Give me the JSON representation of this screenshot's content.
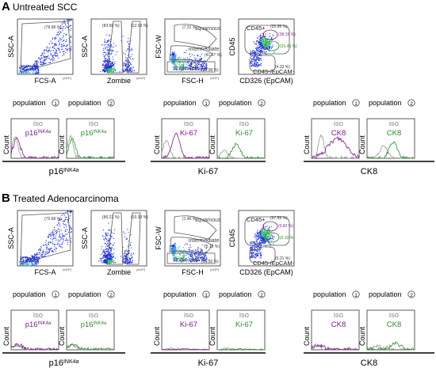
{
  "panels": [
    {
      "letter": "A",
      "title": "Untreated SCC",
      "scatter": [
        {
          "x_label": "FCS-A",
          "y_label": "SSC-A",
          "gate_pct": "(78.98 %)",
          "unit": "(x10⁴)",
          "variant": 1,
          "seed": 11
        },
        {
          "x_label": "Zombie",
          "y_label": "SSC-A",
          "gate_pct": "(83.56 %)",
          "gate_pct2": "(12.09 %)",
          "unit": "(x10⁴)",
          "variant": 2,
          "seed": 21
        },
        {
          "x_label": "FSC-H",
          "y_label": "FSC-W",
          "gate_pct": "(7.31 %)",
          "gate_pct2": "(41.57 %)",
          "gate_pct3": "(33.08 %)",
          "unit": "(x10⁴)",
          "variant": 3,
          "seed": 31,
          "lab1": "squamous",
          "lab2": "intermediate",
          "lab3": "single cells"
        },
        {
          "x_label": "CD326 (EpCAM)",
          "y_label": "CD45",
          "gate_pct": "(20.95 %)",
          "gate_pct2": "(38.15 %)",
          "gate_pct3": "(20.43 %)",
          "gate_pct4": "(4.33 %)",
          "variant": 4,
          "seed": 41,
          "lab1": "CD45+",
          "lab2": "CD45-/EpCAM-"
        }
      ],
      "hist": [
        {
          "population": "population",
          "num": "1",
          "iso": "iso",
          "marker": "p16",
          "sup": "INK4a",
          "color": "#7b1a88",
          "y_label": "Count",
          "shape": "left",
          "seed": 51
        },
        {
          "population": "population",
          "num": "2",
          "iso": "iso",
          "marker": "p16",
          "sup": "INK4a",
          "color": "#2e8b2e",
          "y_label": "Count",
          "shape": "left",
          "seed": 52
        },
        {
          "population": "population",
          "num": "1",
          "iso": "iso",
          "marker": "Ki-67",
          "sup": "",
          "color": "#7b1a88",
          "y_label": "Count",
          "shape": "leftmid",
          "seed": 53
        },
        {
          "population": "population",
          "num": "2",
          "iso": "iso",
          "marker": "Ki-67",
          "sup": "",
          "color": "#2e8b2e",
          "y_label": "Count",
          "shape": "mid",
          "seed": 54
        },
        {
          "population": "population",
          "num": "1",
          "iso": "iso",
          "marker": "CK8",
          "sup": "",
          "color": "#7b1a88",
          "y_label": "Count",
          "shape": "wide",
          "seed": 55
        },
        {
          "population": "population",
          "num": "2",
          "iso": "iso",
          "marker": "CK8",
          "sup": "",
          "color": "#2e8b2e",
          "y_label": "Count",
          "shape": "midright",
          "seed": 56
        }
      ],
      "group_labels": [
        {
          "text": "p16",
          "sup": "INK4a"
        },
        {
          "text": "Ki-67",
          "sup": ""
        },
        {
          "text": "CK8",
          "sup": ""
        }
      ]
    },
    {
      "letter": "B",
      "title": "Treated Adenocarcinoma",
      "scatter": [
        {
          "x_label": "FCS-A",
          "y_label": "SSC-A",
          "gate_pct": "(75.68 %)",
          "unit": "(x10⁴)",
          "variant": 1,
          "seed": 61
        },
        {
          "x_label": "Zombie",
          "y_label": "SSC-A",
          "gate_pct": "(86.22 %)",
          "gate_pct2": "(10.39 %)",
          "unit": "(x10⁴)",
          "variant": 2,
          "seed": 71
        },
        {
          "x_label": "FSC-H",
          "y_label": "FSC-W",
          "gate_pct": "(1.46 %)",
          "gate_pct2": "(5.13 %)",
          "gate_pct3": "(86.56 %)",
          "unit": "(x10⁴)",
          "variant": 3,
          "seed": 81,
          "lab1": "squamous",
          "lab2": "intermediate",
          "lab3": "single cells"
        },
        {
          "x_label": "CD326 (EpCAM)",
          "y_label": "CD45",
          "gate_pct": "(97.55 %)",
          "gate_pct2": "(0.82 %)",
          "gate_pct3": "(0.33 %)",
          "gate_pct4": "(0.31 %)",
          "variant": 4,
          "seed": 91,
          "lab1": "CD45+",
          "lab2": "CD45-/EpCAM-"
        }
      ],
      "hist": [
        {
          "population": "population",
          "num": "1",
          "iso": "iso",
          "marker": "p16",
          "sup": "INK4a",
          "color": "#7b1a88",
          "y_label": "Count",
          "shape": "flat",
          "seed": 101
        },
        {
          "population": "population",
          "num": "2",
          "iso": "iso",
          "marker": "p16",
          "sup": "INK4a",
          "color": "#2e8b2e",
          "y_label": "Count",
          "shape": "flat",
          "seed": 102
        },
        {
          "population": "population",
          "num": "1",
          "iso": "iso",
          "marker": "Ki-67",
          "sup": "",
          "color": "#7b1a88",
          "y_label": "Count",
          "shape": "none",
          "seed": 103
        },
        {
          "population": "population",
          "num": "2",
          "iso": "iso",
          "marker": "Ki-67",
          "sup": "",
          "color": "#2e8b2e",
          "y_label": "Count",
          "shape": "none",
          "seed": 104
        },
        {
          "population": "population",
          "num": "1",
          "iso": "iso",
          "marker": "CK8",
          "sup": "",
          "color": "#7b1a88",
          "y_label": "Count",
          "shape": "flat",
          "seed": 105
        },
        {
          "population": "population",
          "num": "2",
          "iso": "iso",
          "marker": "CK8",
          "sup": "",
          "color": "#2e8b2e",
          "y_label": "Count",
          "shape": "flatright",
          "seed": 106
        }
      ],
      "group_labels": [
        {
          "text": "p16",
          "sup": "INK4a"
        },
        {
          "text": "Ki-67",
          "sup": ""
        },
        {
          "text": "CK8",
          "sup": ""
        }
      ]
    }
  ]
}
